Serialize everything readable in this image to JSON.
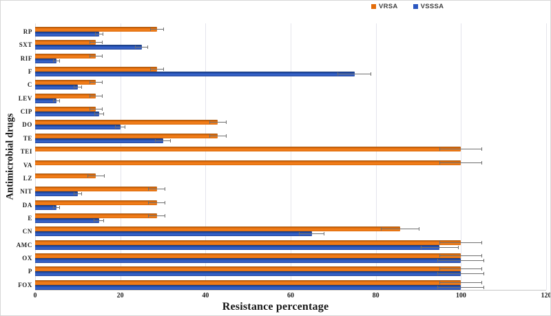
{
  "legend": {
    "items": [
      {
        "name": "vrsa",
        "label": "VRSA",
        "color": "#e36c0a"
      },
      {
        "name": "vsssa",
        "label": "VSSSA",
        "color": "#2b57c0"
      }
    ]
  },
  "chart_data": {
    "type": "bar",
    "orientation": "horizontal",
    "title": "",
    "xlabel": "Resistance percentage",
    "ylabel": "Antimicrobial drugs",
    "xlim": [
      0,
      120
    ],
    "xticks": [
      0,
      20,
      40,
      60,
      80,
      100,
      120
    ],
    "grid": "vertical-light",
    "legend_position": "top",
    "error_bars": true,
    "categories": [
      "RP",
      "SXT",
      "RIF",
      "F",
      "C",
      "LEV",
      "CIP",
      "DO",
      "TE",
      "TEI",
      "VA",
      "LZ",
      "NIT",
      "DA",
      "E",
      "CN",
      "AMC",
      "OX",
      "P",
      "FOX"
    ],
    "series": [
      {
        "name": "VRSA",
        "color": "#e36c0a",
        "values": [
          28.6,
          14.3,
          14.3,
          28.6,
          14.3,
          14.3,
          14.3,
          42.9,
          42.9,
          100,
          100,
          14.3,
          28.6,
          28.6,
          28.6,
          85.7,
          100,
          100,
          100,
          100
        ],
        "errors": [
          1.6,
          1.5,
          1.5,
          1.6,
          1.5,
          1.5,
          1.5,
          2,
          2,
          5,
          5,
          2,
          2,
          2,
          2,
          4.5,
          5,
          5,
          5,
          5
        ]
      },
      {
        "name": "VSSSA",
        "color": "#2b57c0",
        "values": [
          15,
          25,
          5,
          75,
          10,
          5,
          15,
          20,
          30,
          0,
          0,
          0,
          10,
          5,
          15,
          65,
          95,
          100,
          100,
          100
        ],
        "errors": [
          1,
          1.5,
          0.8,
          4,
          1,
          0.8,
          1.1,
          1.2,
          1.8,
          0,
          0,
          0,
          1,
          0.8,
          1.2,
          3,
          4.5,
          5.5,
          5.5,
          5.5
        ]
      }
    ]
  }
}
